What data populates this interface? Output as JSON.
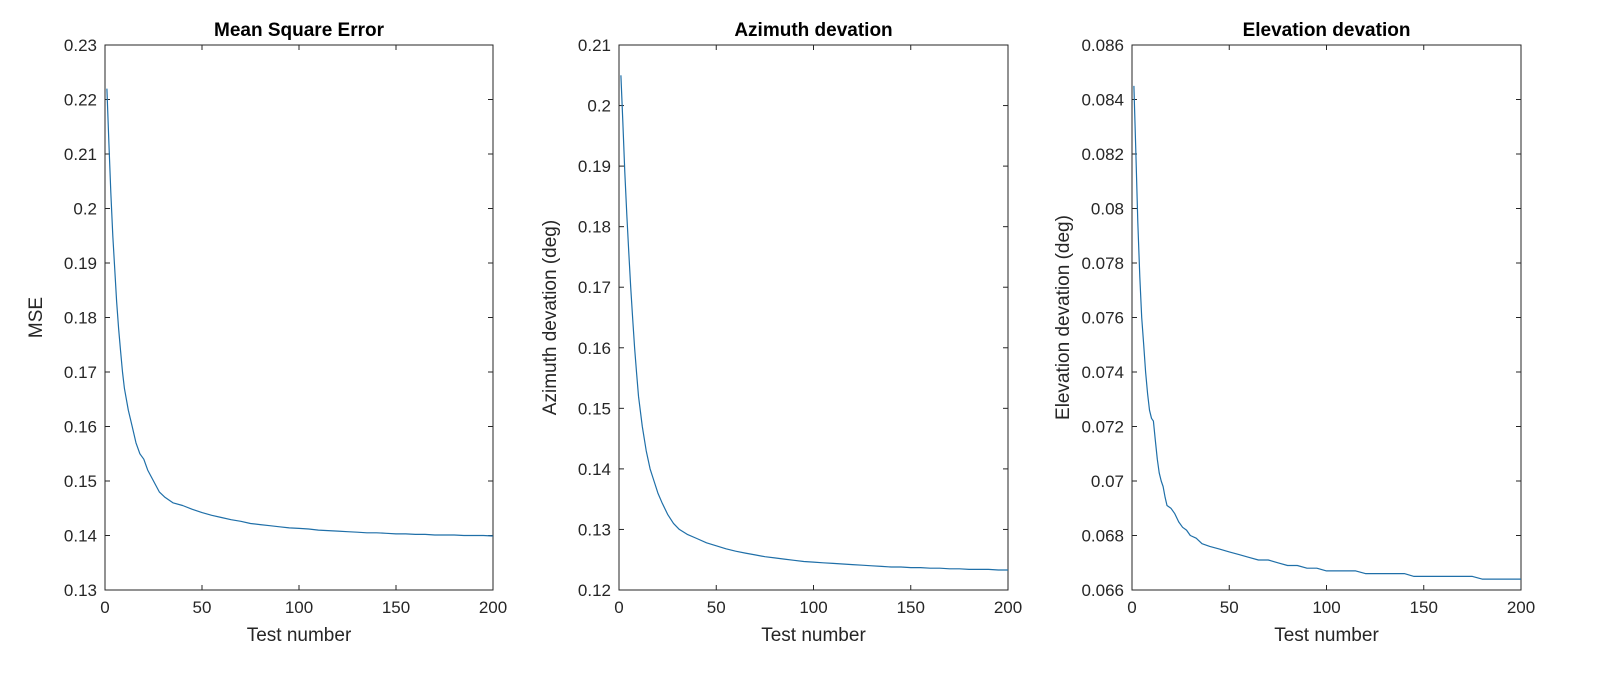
{
  "chart_data": [
    {
      "type": "line",
      "title": "Mean Square Error",
      "xlabel": "Test number",
      "ylabel": "MSE",
      "xlim": [
        0,
        200
      ],
      "ylim": [
        0.13,
        0.23
      ],
      "xticks": [
        0,
        50,
        100,
        150,
        200
      ],
      "xtick_labels": [
        "0",
        "50",
        "100",
        "150",
        "200"
      ],
      "yticks": [
        0.13,
        0.14,
        0.15,
        0.16,
        0.17,
        0.18,
        0.19,
        0.2,
        0.21,
        0.22,
        0.23
      ],
      "ytick_labels": [
        "0.13",
        "0.14",
        "0.15",
        "0.16",
        "0.17",
        "0.18",
        "0.19",
        "0.2",
        "0.21",
        "0.22",
        "0.23"
      ],
      "grid": false,
      "line_color": "#1f6fa8",
      "series": [
        {
          "x": [
            1,
            2,
            3,
            4,
            5,
            6,
            7,
            8,
            9,
            10,
            12,
            14,
            16,
            18,
            20,
            22,
            25,
            28,
            31,
            35,
            40,
            45,
            50,
            55,
            60,
            65,
            70,
            75,
            80,
            85,
            90,
            95,
            100,
            105,
            110,
            115,
            120,
            125,
            130,
            135,
            140,
            145,
            150,
            155,
            160,
            165,
            170,
            175,
            180,
            185,
            190,
            195,
            200
          ],
          "values": [
            0.222,
            0.212,
            0.203,
            0.195,
            0.189,
            0.183,
            0.178,
            0.174,
            0.17,
            0.167,
            0.163,
            0.16,
            0.157,
            0.155,
            0.154,
            0.152,
            0.15,
            0.148,
            0.147,
            0.146,
            0.1455,
            0.1448,
            0.1442,
            0.1437,
            0.1433,
            0.1429,
            0.1426,
            0.1422,
            0.142,
            0.1418,
            0.1416,
            0.1414,
            0.1413,
            0.1412,
            0.141,
            0.1409,
            0.1408,
            0.1407,
            0.1406,
            0.1405,
            0.1405,
            0.1404,
            0.1403,
            0.1403,
            0.1402,
            0.1402,
            0.1401,
            0.1401,
            0.1401,
            0.14,
            0.14,
            0.14,
            0.1399
          ]
        }
      ]
    },
    {
      "type": "line",
      "title": "Azimuth devation",
      "xlabel": "Test number",
      "ylabel": "Azimuth devation (deg)",
      "xlim": [
        0,
        200
      ],
      "ylim": [
        0.12,
        0.21
      ],
      "xticks": [
        0,
        50,
        100,
        150,
        200
      ],
      "xtick_labels": [
        "0",
        "50",
        "100",
        "150",
        "200"
      ],
      "yticks": [
        0.12,
        0.13,
        0.14,
        0.15,
        0.16,
        0.17,
        0.18,
        0.19,
        0.2,
        0.21
      ],
      "ytick_labels": [
        "0.12",
        "0.13",
        "0.14",
        "0.15",
        "0.16",
        "0.17",
        "0.18",
        "0.19",
        "0.2",
        "0.21"
      ],
      "grid": false,
      "line_color": "#1f6fa8",
      "series": [
        {
          "x": [
            1,
            2,
            3,
            4,
            5,
            6,
            7,
            8,
            9,
            10,
            12,
            14,
            16,
            18,
            20,
            22,
            25,
            28,
            31,
            35,
            40,
            45,
            50,
            55,
            60,
            65,
            70,
            75,
            80,
            85,
            90,
            95,
            100,
            105,
            110,
            115,
            120,
            125,
            130,
            135,
            140,
            145,
            150,
            155,
            160,
            165,
            170,
            175,
            180,
            185,
            190,
            195,
            200
          ],
          "values": [
            0.205,
            0.197,
            0.189,
            0.182,
            0.176,
            0.17,
            0.165,
            0.16,
            0.156,
            0.152,
            0.147,
            0.143,
            0.14,
            0.138,
            0.136,
            0.1345,
            0.1325,
            0.131,
            0.13,
            0.1292,
            0.1285,
            0.1278,
            0.1273,
            0.1268,
            0.1264,
            0.1261,
            0.1258,
            0.1255,
            0.1253,
            0.1251,
            0.1249,
            0.1247,
            0.1246,
            0.1245,
            0.1244,
            0.1243,
            0.1242,
            0.1241,
            0.124,
            0.1239,
            0.1238,
            0.1238,
            0.1237,
            0.1237,
            0.1236,
            0.1236,
            0.1235,
            0.1235,
            0.1234,
            0.1234,
            0.1234,
            0.1233,
            0.1233
          ]
        }
      ]
    },
    {
      "type": "line",
      "title": "Elevation devation",
      "xlabel": "Test number",
      "ylabel": "Elevation devation (deg)",
      "xlim": [
        0,
        200
      ],
      "ylim": [
        0.066,
        0.086
      ],
      "xticks": [
        0,
        50,
        100,
        150,
        200
      ],
      "xtick_labels": [
        "0",
        "50",
        "100",
        "150",
        "200"
      ],
      "yticks": [
        0.066,
        0.068,
        0.07,
        0.072,
        0.074,
        0.076,
        0.078,
        0.08,
        0.082,
        0.084,
        0.086
      ],
      "ytick_labels": [
        "0.066",
        "0.068",
        "0.07",
        "0.072",
        "0.074",
        "0.076",
        "0.078",
        "0.08",
        "0.082",
        "0.084",
        "0.086"
      ],
      "grid": false,
      "line_color": "#1f6fa8",
      "series": [
        {
          "x": [
            1,
            2,
            3,
            4,
            5,
            6,
            7,
            8,
            9,
            10,
            11,
            12,
            13,
            14,
            15,
            16,
            17,
            18,
            20,
            22,
            24,
            26,
            28,
            30,
            33,
            36,
            40,
            45,
            50,
            55,
            60,
            65,
            70,
            75,
            80,
            85,
            90,
            95,
            100,
            105,
            110,
            115,
            120,
            125,
            130,
            135,
            140,
            145,
            150,
            155,
            160,
            165,
            170,
            175,
            180,
            185,
            190,
            195,
            200
          ],
          "values": [
            0.0845,
            0.082,
            0.0795,
            0.0775,
            0.076,
            0.075,
            0.074,
            0.0732,
            0.0726,
            0.0723,
            0.0722,
            0.0715,
            0.0708,
            0.0703,
            0.07,
            0.0698,
            0.0694,
            0.0691,
            0.069,
            0.0688,
            0.0685,
            0.0683,
            0.0682,
            0.068,
            0.0679,
            0.0677,
            0.0676,
            0.0675,
            0.0674,
            0.0673,
            0.0672,
            0.0671,
            0.0671,
            0.067,
            0.0669,
            0.0669,
            0.0668,
            0.0668,
            0.0667,
            0.0667,
            0.0667,
            0.0667,
            0.0666,
            0.0666,
            0.0666,
            0.0666,
            0.0666,
            0.0665,
            0.0665,
            0.0665,
            0.0665,
            0.0665,
            0.0665,
            0.0665,
            0.0664,
            0.0664,
            0.0664,
            0.0664,
            0.0664
          ]
        }
      ]
    }
  ]
}
